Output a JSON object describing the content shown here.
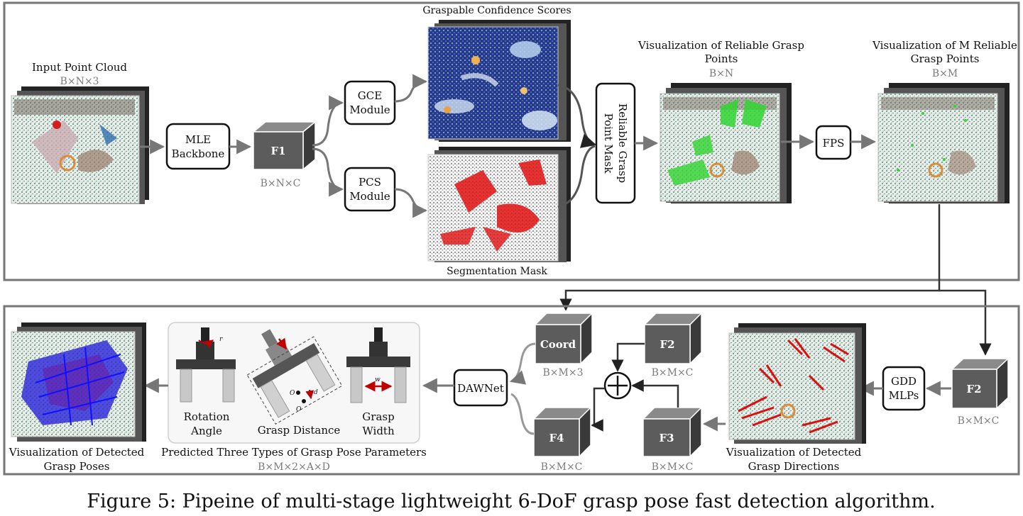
{
  "top_stage": {
    "input": {
      "title": "Input Point Cloud",
      "dims": "B×N×3"
    },
    "backbone": {
      "line1": "MLE",
      "line2": "Backbone"
    },
    "f1": {
      "label": "F1",
      "dims": "B×N×C"
    },
    "gce": {
      "line1": "GCE",
      "line2": "Module"
    },
    "pcs": {
      "line1": "PCS",
      "line2": "Module"
    },
    "gcs_title": "Graspable Confidence Scores",
    "seg_title": "Segmentation Mask",
    "mask": {
      "line1": "Reliable Grasp",
      "line2": "Point Mask"
    },
    "vis_reliable": {
      "line1": "Visualization of Reliable Grasp",
      "line2": "Points",
      "dims": "B×N"
    },
    "fps": "FPS",
    "vis_m": {
      "line1": "Visualization of M Reliable",
      "line2": "Grasp Points",
      "dims": "B×M"
    }
  },
  "bottom_stage": {
    "f2_right": {
      "label": "F2",
      "dims": "B×M×C"
    },
    "gdd": {
      "line1": "GDD",
      "line2": "MLPs"
    },
    "vis_dirs": {
      "line1": "Visualization of Detected",
      "line2": "Grasp Directions"
    },
    "coord": {
      "label": "Coord",
      "dims": "B×M×3"
    },
    "f2_mid": {
      "label": "F2",
      "dims": "B×M×C"
    },
    "f3": {
      "label": "F3",
      "dims": "B×M×C"
    },
    "f4": {
      "label": "F4",
      "dims": "B×M×C"
    },
    "dawnet": "DAWNet",
    "params": {
      "rotation": {
        "line1": "Rotation",
        "line2": "Angle"
      },
      "distance": "Grasp Distance",
      "width": {
        "line1": "Grasp",
        "line2": "Width"
      },
      "title": "Predicted Three Types of Grasp Pose Parameters",
      "dims": "B×M×2×A×D"
    },
    "vis_poses": {
      "line1": "Visualization of Detected",
      "line2": "Grasp Poses"
    }
  },
  "caption": "Figure 5: Pipeine of multi-stage lightweight 6-DoF grasp pose fast detection algorithm."
}
